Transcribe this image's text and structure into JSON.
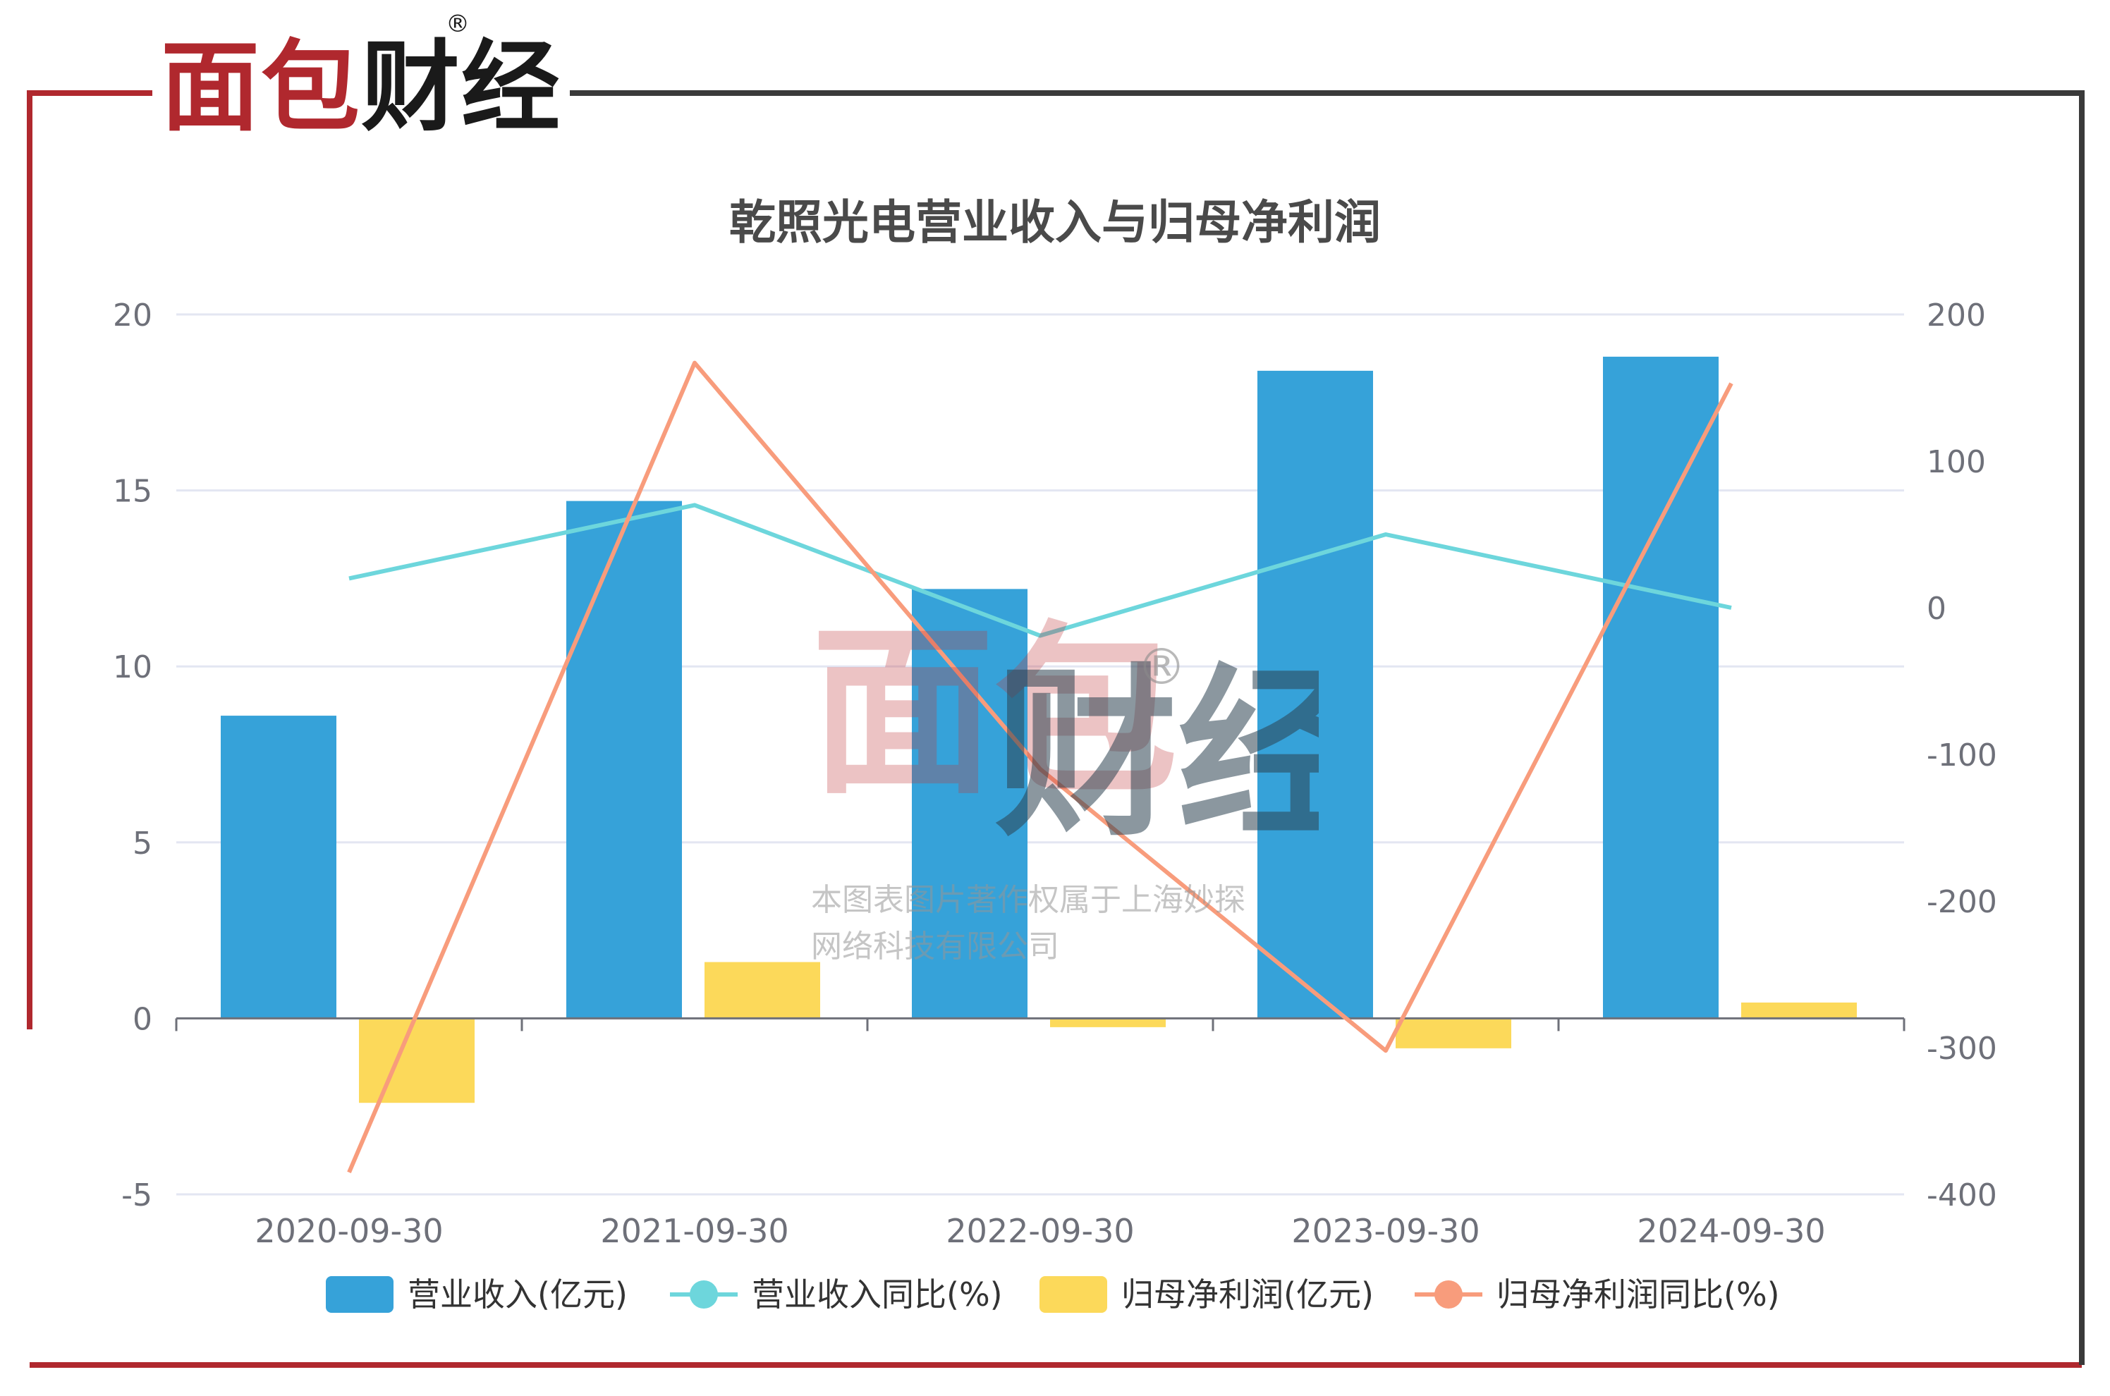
{
  "brand": {
    "name_part1": "面包",
    "name_part2": "财经",
    "mark": "®"
  },
  "watermark": {
    "logo_part1": "面包",
    "logo_part2": "财经",
    "mark": "®",
    "line1": "本图表图片著作权属于上海妙探",
    "line2": "网络科技有限公司"
  },
  "colors": {
    "frame_red": "#b0282e",
    "frame_dark": "#3a3a3a",
    "revenue": "#36a2d9",
    "profit": "#fcd95a",
    "revenue_yoy": "#6dd6dc",
    "profit_yoy": "#f89c7c"
  },
  "chart_data": {
    "type": "bar",
    "title": "乾照光电营业收入与归母净利润",
    "categories": [
      "2020-09-30",
      "2021-09-30",
      "2022-09-30",
      "2023-09-30",
      "2024-09-30"
    ],
    "left_axis": {
      "min": -5,
      "max": 20,
      "ticks": [
        "20",
        "15",
        "10",
        "5",
        "0",
        "-5"
      ]
    },
    "right_axis": {
      "min": -400,
      "max": 200,
      "ticks": [
        "200",
        "100",
        "0",
        "-100",
        "-200",
        "-300",
        "-400"
      ]
    },
    "grid": true,
    "legend_position": "bottom",
    "series": [
      {
        "name": "营业收入(亿元)",
        "type": "bar",
        "axis": "left",
        "values": [
          8.6,
          14.7,
          12.2,
          18.4,
          18.8
        ]
      },
      {
        "name": "营业收入同比(%)",
        "type": "line",
        "axis": "right",
        "values": [
          20,
          70,
          -19,
          50,
          0
        ]
      },
      {
        "name": "归母净利润(亿元)",
        "type": "bar",
        "axis": "left",
        "values": [
          -2.4,
          1.6,
          -0.25,
          -0.85,
          0.45
        ]
      },
      {
        "name": "归母净利润同比(%)",
        "type": "line",
        "axis": "right",
        "values": [
          -385,
          167,
          -110,
          -302,
          153
        ]
      }
    ]
  }
}
